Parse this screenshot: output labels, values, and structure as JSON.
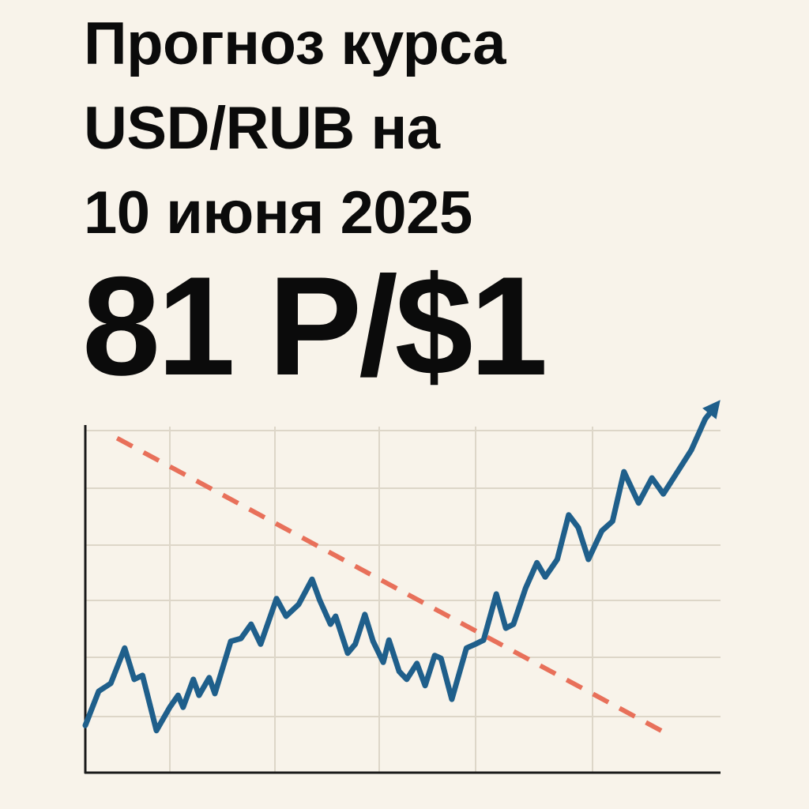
{
  "chart_data": {
    "type": "line",
    "title": "Прогноз курса\nUSD/RUB на\n10 июня 2025",
    "subtitle": "81 Р/$1",
    "xlim": [
      0,
      10
    ],
    "ylim": [
      0,
      6.5
    ],
    "series": [
      {
        "name": null,
        "color": "#1f5f8b",
        "style": "solid",
        "arrow": true,
        "x": [
          0,
          0.21,
          0.4,
          0.62,
          0.77,
          0.9,
          1.12,
          1.33,
          1.46,
          1.54,
          1.7,
          1.79,
          1.95,
          2.04,
          2.29,
          2.45,
          2.61,
          2.76,
          3.01,
          3.16,
          3.36,
          3.57,
          3.69,
          3.86,
          3.94,
          4.13,
          4.25,
          4.4,
          4.53,
          4.69,
          4.78,
          4.94,
          5.06,
          5.22,
          5.35,
          5.5,
          5.6,
          5.77,
          6.0,
          6.14,
          6.27,
          6.47,
          6.62,
          6.74,
          6.93,
          7.11,
          7.24,
          7.43,
          7.61,
          7.76,
          7.92,
          8.13,
          8.3,
          8.48,
          8.71,
          8.92,
          9.1,
          9.38,
          9.54,
          9.76,
          9.91
        ],
        "values": [
          0.83,
          1.43,
          1.57,
          2.19,
          1.64,
          1.71,
          0.74,
          1.15,
          1.36,
          1.15,
          1.64,
          1.36,
          1.67,
          1.39,
          2.31,
          2.36,
          2.61,
          2.26,
          3.06,
          2.75,
          2.96,
          3.4,
          3.03,
          2.61,
          2.75,
          2.1,
          2.26,
          2.78,
          2.31,
          1.94,
          2.33,
          1.78,
          1.64,
          1.92,
          1.53,
          2.06,
          2.01,
          1.29,
          2.19,
          2.26,
          2.33,
          3.14,
          2.54,
          2.61,
          3.24,
          3.69,
          3.44,
          3.75,
          4.53,
          4.31,
          3.75,
          4.25,
          4.42,
          5.29,
          4.74,
          5.18,
          4.9,
          5.39,
          5.67,
          6.22,
          6.43
        ]
      },
      {
        "name": null,
        "color": "#e8705a",
        "style": "dashed",
        "arrow": false,
        "x": [
          0.5,
          9.23
        ],
        "values": [
          5.88,
          0.64
        ]
      }
    ]
  }
}
